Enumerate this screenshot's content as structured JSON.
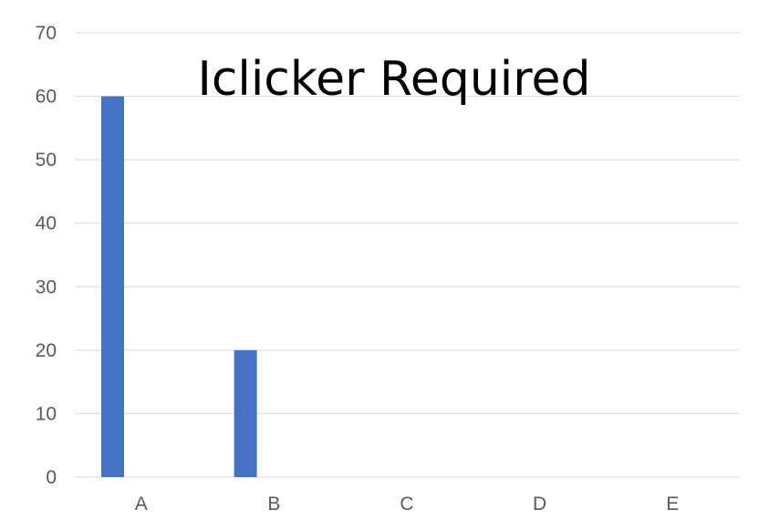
{
  "chart_data": {
    "type": "bar",
    "title": "Iclicker Required",
    "categories": [
      "A",
      "B",
      "C",
      "D",
      "E"
    ],
    "values": [
      60,
      20,
      0,
      0,
      0
    ],
    "ylim": [
      0,
      70
    ],
    "yticks": [
      0,
      10,
      20,
      30,
      40,
      50,
      60,
      70
    ],
    "grid": true,
    "legend": "none",
    "xlabel": "",
    "ylabel": ""
  },
  "colors": {
    "bar": "#4472c4",
    "gridline": "#d9d9d9",
    "tick_text": "#595959",
    "title_text": "#000000"
  }
}
